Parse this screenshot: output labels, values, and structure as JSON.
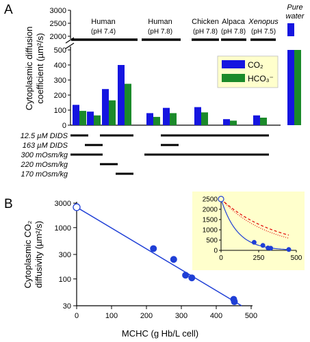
{
  "panels": {
    "a": "A",
    "b": "B"
  },
  "colors": {
    "co2": "#1515e0",
    "hco3": "#1b8a2a",
    "fit": "#1f3fd6",
    "inset_bg": "#ffffcc",
    "inset_dashed": "#e00000"
  },
  "chart_data": [
    {
      "type": "bar",
      "panel": "A",
      "ylabel": "Cytoplasmic diffusion coefficient (µm²/s)",
      "ylabel_lines": [
        "Cytoplasmic diffusion",
        "coefficient (µm²/s)"
      ],
      "axis_break": true,
      "ylim_lower": [
        0,
        500
      ],
      "ylim_upper": [
        2000,
        3000
      ],
      "yticks_lower": [
        "0",
        "100",
        "200",
        "300",
        "400",
        "500"
      ],
      "yticks_upper": [
        "2000",
        "2500",
        "3000"
      ],
      "legend_position": "right",
      "series": [
        {
          "name": "CO₂",
          "values": [
            135,
            90,
            240,
            400,
            80,
            115,
            120,
            40,
            65,
            2500
          ]
        },
        {
          "name": "HCO₃⁻",
          "values": [
            95,
            65,
            165,
            275,
            55,
            80,
            85,
            30,
            50,
            550
          ]
        }
      ],
      "groups": [
        {
          "name": "Human",
          "ph": "(pH 7.4)"
        },
        {
          "name": "Human",
          "ph": "(pH 7.8)"
        },
        {
          "name": "Chicken",
          "ph": "(pH 7.8)"
        },
        {
          "name": "Alpaca",
          "ph": "(pH 7.8)"
        },
        {
          "name": "Xenopus",
          "ph": "(pH 7.5)"
        },
        {
          "name": "Pure water",
          "ph": ""
        }
      ],
      "pure_water_lines": [
        "Pure",
        "water"
      ],
      "conditions": [
        {
          "label": "12.5 µM DIDS",
          "bars": [
            0,
            2,
            3,
            5,
            6,
            7,
            8
          ]
        },
        {
          "label": "163 µM DIDS",
          "bars": [
            1,
            5
          ]
        },
        {
          "label": "300 mOsm/kg",
          "bars": [
            0,
            1,
            4,
            5,
            6,
            7,
            8
          ]
        },
        {
          "label": "220 mOsm/kg",
          "bars": [
            2
          ]
        },
        {
          "label": "170 mOsm/kg",
          "bars": [
            3
          ]
        }
      ]
    },
    {
      "type": "scatter",
      "panel": "B",
      "xlabel": "MCHC (g Hb/L cell)",
      "ylabel": "Cytoplasmic CO₂ diffusivity (µm²/s)",
      "ylabel_lines": [
        "Cytoplasmic CO₂",
        "diffusivity (µm²/s)"
      ],
      "yscale": "log",
      "xlim": [
        0,
        500
      ],
      "ylim": [
        30,
        3000
      ],
      "xticks": [
        "0",
        "100",
        "200",
        "300",
        "400",
        "500"
      ],
      "yticks": [
        "30",
        "100",
        "300",
        "1000",
        "3000"
      ],
      "points": [
        {
          "x": 0,
          "y": 2500,
          "open": true
        },
        {
          "x": 220,
          "y": 390
        },
        {
          "x": 278,
          "y": 240
        },
        {
          "x": 312,
          "y": 118
        },
        {
          "x": 330,
          "y": 105
        },
        {
          "x": 450,
          "y": 40
        },
        {
          "x": 452,
          "y": 36
        }
      ],
      "fit": {
        "x": [
          0,
          480
        ],
        "y": [
          2500,
          28
        ]
      },
      "inset": {
        "type": "scatter",
        "yscale": "linear",
        "xlim": [
          0,
          500
        ],
        "ylim": [
          0,
          2500
        ],
        "xticks": [
          "0",
          "250",
          "500"
        ],
        "yticks": [
          "0",
          "500",
          "1000",
          "1500",
          "2000",
          "2500"
        ],
        "points": [
          {
            "x": 0,
            "y": 2500,
            "open": true
          },
          {
            "x": 220,
            "y": 390
          },
          {
            "x": 278,
            "y": 240
          },
          {
            "x": 312,
            "y": 118
          },
          {
            "x": 330,
            "y": 105
          },
          {
            "x": 450,
            "y": 40
          }
        ]
      }
    }
  ]
}
